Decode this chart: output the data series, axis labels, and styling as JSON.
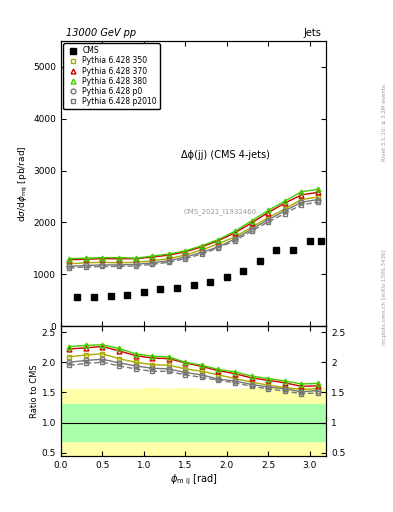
{
  "title_top": "13000 GeV pp",
  "title_right": "Jets",
  "plot_title": "Δϕ(jj) (CMS 4-jets)",
  "ylabel_main": "dσ/dϕ_mij [pb/rad]",
  "ylabel_ratio": "Ratio to CMS",
  "right_label": "mcplots.cern.ch [arXiv:1306.3436]",
  "right_label2": "Rivet 3.1.10; ≥ 3.2M events",
  "watermark": "CMS_2021_I1932460",
  "cms_x": [
    0.2,
    0.4,
    0.6,
    0.8,
    1.0,
    1.2,
    1.4,
    1.6,
    1.8,
    2.0,
    2.2,
    2.4,
    2.6,
    2.8,
    3.0,
    3.14
  ],
  "cms_y": [
    570,
    570,
    580,
    590,
    650,
    710,
    740,
    800,
    850,
    940,
    1060,
    1250,
    1460,
    1460,
    1650,
    1650
  ],
  "p350_x": [
    0.1,
    0.3,
    0.5,
    0.7,
    0.9,
    1.1,
    1.3,
    1.5,
    1.7,
    1.9,
    2.1,
    2.3,
    2.5,
    2.7,
    2.9,
    3.1
  ],
  "p350_y": [
    1200,
    1220,
    1230,
    1220,
    1230,
    1260,
    1300,
    1370,
    1470,
    1590,
    1720,
    1910,
    2090,
    2260,
    2440,
    2490
  ],
  "p370_x": [
    0.1,
    0.3,
    0.5,
    0.7,
    0.9,
    1.1,
    1.3,
    1.5,
    1.7,
    1.9,
    2.1,
    2.3,
    2.5,
    2.7,
    2.9,
    3.1
  ],
  "p370_y": [
    1280,
    1290,
    1300,
    1300,
    1300,
    1330,
    1370,
    1430,
    1530,
    1650,
    1800,
    1990,
    2190,
    2370,
    2530,
    2580
  ],
  "p380_x": [
    0.1,
    0.3,
    0.5,
    0.7,
    0.9,
    1.1,
    1.3,
    1.5,
    1.7,
    1.9,
    2.1,
    2.3,
    2.5,
    2.7,
    2.9,
    3.1
  ],
  "p380_y": [
    1300,
    1310,
    1320,
    1320,
    1310,
    1350,
    1390,
    1450,
    1550,
    1670,
    1830,
    2030,
    2230,
    2410,
    2590,
    2640
  ],
  "p0_x": [
    0.1,
    0.3,
    0.5,
    0.7,
    0.9,
    1.1,
    1.3,
    1.5,
    1.7,
    1.9,
    2.1,
    2.3,
    2.5,
    2.7,
    2.9,
    3.1
  ],
  "p0_y": [
    1150,
    1170,
    1180,
    1180,
    1190,
    1220,
    1260,
    1330,
    1420,
    1530,
    1680,
    1870,
    2050,
    2220,
    2390,
    2440
  ],
  "p2010_x": [
    0.1,
    0.3,
    0.5,
    0.7,
    0.9,
    1.1,
    1.3,
    1.5,
    1.7,
    1.9,
    2.1,
    2.3,
    2.5,
    2.7,
    2.9,
    3.1
  ],
  "p2010_y": [
    1120,
    1140,
    1150,
    1150,
    1160,
    1190,
    1230,
    1300,
    1390,
    1510,
    1650,
    1830,
    2010,
    2170,
    2340,
    2390
  ],
  "ratio_p350": [
    2.09,
    2.12,
    2.14,
    2.06,
    2.0,
    1.96,
    1.95,
    1.89,
    1.85,
    1.79,
    1.73,
    1.67,
    1.62,
    1.58,
    1.55,
    1.56
  ],
  "ratio_p370": [
    2.22,
    2.24,
    2.26,
    2.19,
    2.11,
    2.07,
    2.06,
    1.99,
    1.93,
    1.86,
    1.81,
    1.74,
    1.7,
    1.66,
    1.6,
    1.61
  ],
  "ratio_p380": [
    2.26,
    2.28,
    2.29,
    2.23,
    2.14,
    2.1,
    2.09,
    2.0,
    1.95,
    1.88,
    1.84,
    1.77,
    1.73,
    1.69,
    1.64,
    1.65
  ],
  "ratio_p0": [
    2.0,
    2.03,
    2.05,
    1.99,
    1.94,
    1.9,
    1.89,
    1.83,
    1.79,
    1.72,
    1.69,
    1.63,
    1.59,
    1.56,
    1.51,
    1.53
  ],
  "ratio_p2010": [
    1.95,
    1.98,
    2.0,
    1.94,
    1.89,
    1.85,
    1.85,
    1.79,
    1.75,
    1.7,
    1.66,
    1.6,
    1.56,
    1.52,
    1.48,
    1.49
  ],
  "band_x_edges": [
    0.0,
    0.2,
    0.4,
    0.6,
    0.8,
    1.0,
    1.2,
    1.4,
    1.6,
    1.8,
    2.0,
    2.2,
    2.4,
    2.6,
    2.8,
    3.0,
    3.2
  ],
  "green_upper": [
    1.3,
    1.3,
    1.3,
    1.3,
    1.3,
    1.3,
    1.3,
    1.3,
    1.3,
    1.3,
    1.3,
    1.3,
    1.3,
    1.3,
    1.3,
    1.3,
    1.3
  ],
  "green_lower": [
    0.7,
    0.7,
    0.7,
    0.7,
    0.7,
    0.7,
    0.7,
    0.7,
    0.7,
    0.7,
    0.7,
    0.7,
    0.7,
    0.7,
    0.7,
    0.7,
    0.7
  ],
  "yellow_upper": [
    1.55,
    1.55,
    1.55,
    1.55,
    1.55,
    1.57,
    1.55,
    1.57,
    1.55,
    1.55,
    1.55,
    1.57,
    1.57,
    1.57,
    1.57,
    1.57,
    1.57
  ],
  "yellow_lower": [
    0.45,
    0.45,
    0.45,
    0.45,
    0.45,
    0.43,
    0.45,
    0.43,
    0.45,
    0.45,
    0.45,
    0.43,
    0.43,
    0.43,
    0.43,
    0.43,
    0.43
  ],
  "color_p350": "#aaaa00",
  "color_p370": "#cc0000",
  "color_p380": "#44cc00",
  "color_p0": "#777777",
  "color_p2010": "#777777",
  "ylim_main": [
    0,
    5500
  ],
  "ylim_ratio": [
    0.45,
    2.6
  ],
  "xlim": [
    0.0,
    3.2
  ],
  "main_yticks": [
    0,
    1000,
    2000,
    3000,
    4000,
    5000
  ],
  "ratio_yticks": [
    0.5,
    1.0,
    1.5,
    2.0,
    2.5
  ]
}
